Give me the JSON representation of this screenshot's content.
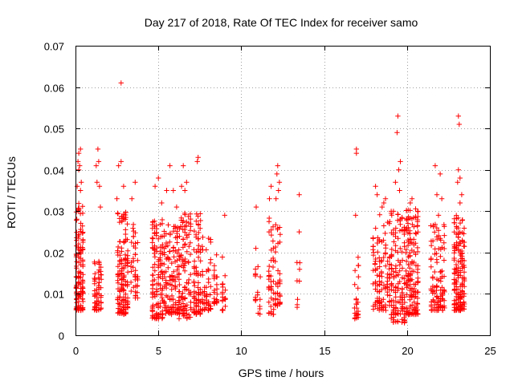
{
  "chart_data": {
    "type": "scatter",
    "title": "Day 217 of 2018, Rate Of TEC Index for receiver samo",
    "xlabel": "GPS time / hours",
    "ylabel": "ROTI / TECUs",
    "xlim": [
      0,
      25
    ],
    "ylim": [
      0,
      0.07
    ],
    "xticks": [
      0,
      5,
      10,
      15,
      20,
      25
    ],
    "xtick_labels": [
      "0",
      "5",
      "10",
      "15",
      "20",
      "25"
    ],
    "yticks": [
      0,
      0.01,
      0.02,
      0.03,
      0.04,
      0.05,
      0.06,
      0.07
    ],
    "ytick_labels": [
      "0",
      "0.01",
      "0.02",
      "0.03",
      "0.04",
      "0.05",
      "0.06",
      "0.07"
    ],
    "grid": true,
    "marker": "+",
    "series": [
      {
        "name": "ROTI",
        "color": "#ff0000",
        "clusters": [
          {
            "x0": 0.0,
            "x1": 0.5,
            "ymin": 0.006,
            "ymax": 0.032,
            "n": 130,
            "extra": [
              [
                0.2,
                0.044
              ],
              [
                0.3,
                0.045
              ],
              [
                0.15,
                0.042
              ],
              [
                0.25,
                0.041
              ],
              [
                0.1,
                0.036
              ],
              [
                0.35,
                0.037
              ],
              [
                0.2,
                0.04
              ],
              [
                0.3,
                0.035
              ]
            ]
          },
          {
            "x0": 1.1,
            "x1": 1.6,
            "ymin": 0.006,
            "ymax": 0.018,
            "n": 60,
            "extra": [
              [
                1.35,
                0.045
              ],
              [
                1.4,
                0.042
              ],
              [
                1.3,
                0.037
              ],
              [
                1.45,
                0.036
              ],
              [
                1.25,
                0.041
              ],
              [
                1.5,
                0.031
              ]
            ]
          },
          {
            "x0": 2.5,
            "x1": 3.2,
            "ymin": 0.005,
            "ymax": 0.03,
            "n": 150,
            "extra": [
              [
                2.75,
                0.061
              ],
              [
                2.6,
                0.041
              ],
              [
                2.75,
                0.042
              ],
              [
                2.9,
                0.036
              ],
              [
                2.5,
                0.033
              ]
            ]
          },
          {
            "x0": 3.3,
            "x1": 3.8,
            "ymin": 0.009,
            "ymax": 0.027,
            "n": 40,
            "extra": [
              [
                3.6,
                0.037
              ],
              [
                3.4,
                0.033
              ]
            ]
          },
          {
            "x0": 4.6,
            "x1": 5.3,
            "ymin": 0.004,
            "ymax": 0.028,
            "n": 120,
            "extra": [
              [
                4.8,
                0.036
              ],
              [
                5.0,
                0.038
              ],
              [
                5.2,
                0.032
              ]
            ]
          },
          {
            "x0": 5.3,
            "x1": 6.2,
            "ymin": 0.005,
            "ymax": 0.027,
            "n": 120,
            "extra": [
              [
                5.7,
                0.041
              ],
              [
                5.5,
                0.035
              ],
              [
                5.9,
                0.035
              ],
              [
                6.1,
                0.031
              ]
            ]
          },
          {
            "x0": 6.2,
            "x1": 7.0,
            "ymin": 0.004,
            "ymax": 0.03,
            "n": 120,
            "extra": [
              [
                6.5,
                0.041
              ],
              [
                6.7,
                0.037
              ],
              [
                6.4,
                0.036
              ],
              [
                6.6,
                0.035
              ]
            ]
          },
          {
            "x0": 7.1,
            "x1": 7.6,
            "ymin": 0.005,
            "ymax": 0.03,
            "n": 80,
            "extra": [
              [
                7.35,
                0.042
              ],
              [
                7.4,
                0.043
              ]
            ]
          },
          {
            "x0": 7.6,
            "x1": 8.2,
            "ymin": 0.006,
            "ymax": 0.025,
            "n": 50,
            "extra": []
          },
          {
            "x0": 8.3,
            "x1": 8.6,
            "ymin": 0.007,
            "ymax": 0.02,
            "n": 25,
            "extra": []
          },
          {
            "x0": 8.8,
            "x1": 9.1,
            "ymin": 0.006,
            "ymax": 0.019,
            "n": 20,
            "extra": [
              [
                9.0,
                0.029
              ]
            ]
          },
          {
            "x0": 10.8,
            "x1": 11.2,
            "ymin": 0.005,
            "ymax": 0.022,
            "n": 18,
            "extra": [
              [
                10.9,
                0.031
              ]
            ]
          },
          {
            "x0": 11.6,
            "x1": 12.0,
            "ymin": 0.005,
            "ymax": 0.03,
            "n": 40,
            "extra": [
              [
                11.8,
                0.036
              ],
              [
                11.7,
                0.033
              ]
            ]
          },
          {
            "x0": 12.0,
            "x1": 12.4,
            "ymin": 0.007,
            "ymax": 0.027,
            "n": 35,
            "extra": [
              [
                12.2,
                0.041
              ],
              [
                12.15,
                0.039
              ],
              [
                12.25,
                0.035
              ],
              [
                12.1,
                0.033
              ],
              [
                12.3,
                0.037
              ]
            ]
          },
          {
            "x0": 13.3,
            "x1": 13.6,
            "ymin": 0.006,
            "ymax": 0.018,
            "n": 8,
            "extra": [
              [
                13.5,
                0.034
              ],
              [
                13.5,
                0.025
              ]
            ]
          },
          {
            "x0": 16.8,
            "x1": 17.1,
            "ymin": 0.004,
            "ymax": 0.022,
            "n": 25,
            "extra": [
              [
                16.95,
                0.045
              ],
              [
                16.95,
                0.044
              ],
              [
                16.9,
                0.029
              ]
            ]
          },
          {
            "x0": 17.9,
            "x1": 18.4,
            "ymin": 0.006,
            "ymax": 0.03,
            "n": 60,
            "extra": [
              [
                18.1,
                0.036
              ],
              [
                18.2,
                0.034
              ]
            ]
          },
          {
            "x0": 18.4,
            "x1": 19.0,
            "ymin": 0.006,
            "ymax": 0.028,
            "n": 55,
            "extra": [
              [
                18.7,
                0.033
              ],
              [
                18.6,
                0.032
              ],
              [
                18.5,
                0.031
              ]
            ]
          },
          {
            "x0": 19.0,
            "x1": 19.9,
            "ymin": 0.003,
            "ymax": 0.03,
            "n": 130,
            "extra": [
              [
                19.45,
                0.053
              ],
              [
                19.4,
                0.049
              ],
              [
                19.6,
                0.042
              ],
              [
                19.5,
                0.04
              ],
              [
                19.3,
                0.037
              ],
              [
                19.55,
                0.035
              ]
            ]
          },
          {
            "x0": 19.9,
            "x1": 20.7,
            "ymin": 0.005,
            "ymax": 0.031,
            "n": 170,
            "extra": [
              [
                20.3,
                0.033
              ],
              [
                20.2,
                0.032
              ]
            ]
          },
          {
            "x0": 21.4,
            "x1": 22.3,
            "ymin": 0.006,
            "ymax": 0.027,
            "n": 110,
            "extra": [
              [
                21.7,
                0.041
              ],
              [
                22.0,
                0.039
              ],
              [
                21.8,
                0.034
              ],
              [
                22.1,
                0.033
              ],
              [
                21.9,
                0.029
              ]
            ]
          },
          {
            "x0": 22.8,
            "x1": 23.5,
            "ymin": 0.006,
            "ymax": 0.029,
            "n": 170,
            "extra": [
              [
                23.1,
                0.053
              ],
              [
                23.15,
                0.051
              ],
              [
                23.1,
                0.04
              ],
              [
                23.2,
                0.038
              ],
              [
                23.05,
                0.037
              ],
              [
                23.3,
                0.034
              ],
              [
                23.2,
                0.032
              ]
            ]
          }
        ]
      }
    ]
  }
}
